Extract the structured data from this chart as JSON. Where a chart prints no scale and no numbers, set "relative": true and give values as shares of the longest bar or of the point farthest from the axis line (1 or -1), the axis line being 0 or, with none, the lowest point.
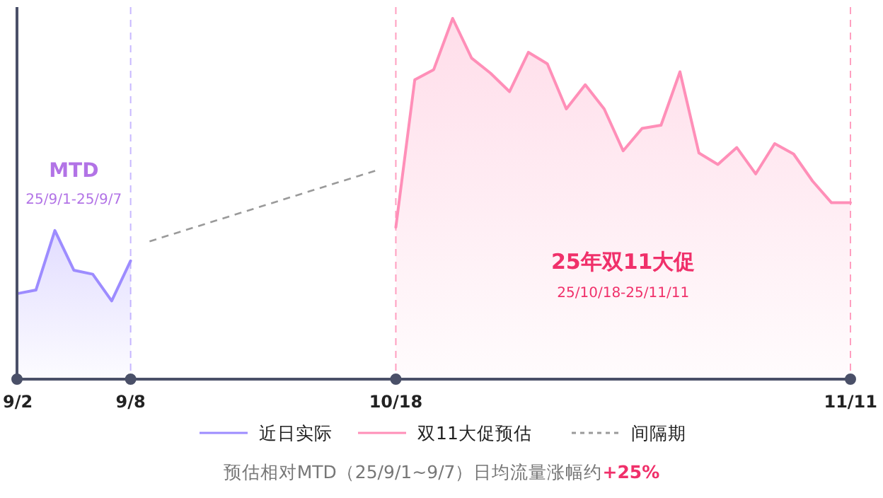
{
  "chart_data": {
    "type": "area",
    "relative": true,
    "categories": [
      "9/2",
      null,
      null,
      null,
      null,
      null,
      "9/8",
      null,
      null,
      null,
      null,
      null,
      null,
      null,
      null,
      null,
      null,
      null,
      null,
      null,
      "10/18",
      null,
      null,
      null,
      null,
      null,
      null,
      null,
      null,
      null,
      null,
      null,
      null,
      null,
      null,
      null,
      null,
      null,
      null,
      null,
      null,
      null,
      null,
      null,
      "11/11"
    ],
    "series": [
      {
        "name": "近日实际",
        "type": "area",
        "color": "#9d8cff",
        "line_style": "solid",
        "values": [
          0.237,
          0.247,
          0.412,
          0.302,
          0.291,
          0.217,
          0.328,
          null,
          null,
          null,
          null,
          null,
          null,
          null,
          null,
          null,
          null,
          null,
          null,
          null,
          null,
          null,
          null,
          null,
          null,
          null,
          null,
          null,
          null,
          null,
          null,
          null,
          null,
          null,
          null,
          null,
          null,
          null,
          null,
          null,
          null,
          null,
          null,
          null,
          null
        ]
      },
      {
        "name": "双11大促预估",
        "type": "area",
        "color": "#ff8fb8",
        "line_style": "solid",
        "values": [
          null,
          null,
          null,
          null,
          null,
          null,
          null,
          null,
          null,
          null,
          null,
          null,
          null,
          null,
          null,
          null,
          null,
          null,
          null,
          null,
          0.421,
          0.83,
          0.858,
          1,
          0.89,
          0.848,
          0.797,
          0.906,
          0.874,
          0.749,
          0.816,
          0.749,
          0.633,
          0.695,
          0.704,
          0.852,
          0.627,
          0.595,
          0.642,
          0.569,
          0.653,
          0.624,
          0.549,
          0.489,
          0.489
        ]
      },
      {
        "name": "间隔期",
        "type": "line",
        "color": "#9a9a9a",
        "line_style": "dashed",
        "values": [
          null,
          null,
          null,
          null,
          null,
          null,
          null,
          0.382,
          null,
          null,
          null,
          null,
          null,
          null,
          null,
          null,
          null,
          null,
          null,
          0.579,
          null,
          null,
          null,
          null,
          null,
          null,
          null,
          null,
          null,
          null,
          null,
          null,
          null,
          null,
          null,
          null,
          null,
          null,
          null,
          null,
          null,
          null,
          null,
          null,
          null
        ]
      }
    ],
    "ref_lines": [
      {
        "axis": "x",
        "value": "9/8",
        "color": "#c8b8ff",
        "line_style": "dashed"
      },
      {
        "axis": "x",
        "value": "10/18",
        "color": "#ff9fc0",
        "line_style": "dashed"
      },
      {
        "axis": "x",
        "value": "11/11",
        "color": "#ff9fc0",
        "line_style": "dashed"
      }
    ],
    "annotations": [
      "MTD",
      "25/9/1-25/9/7",
      "25年双11大促",
      "25/10/18-25/11/11",
      "预估相对MTD（25/9/1~9/7）日均流量涨幅约**+25%**"
    ],
    "legend": "bottom",
    "marker": "none"
  }
}
